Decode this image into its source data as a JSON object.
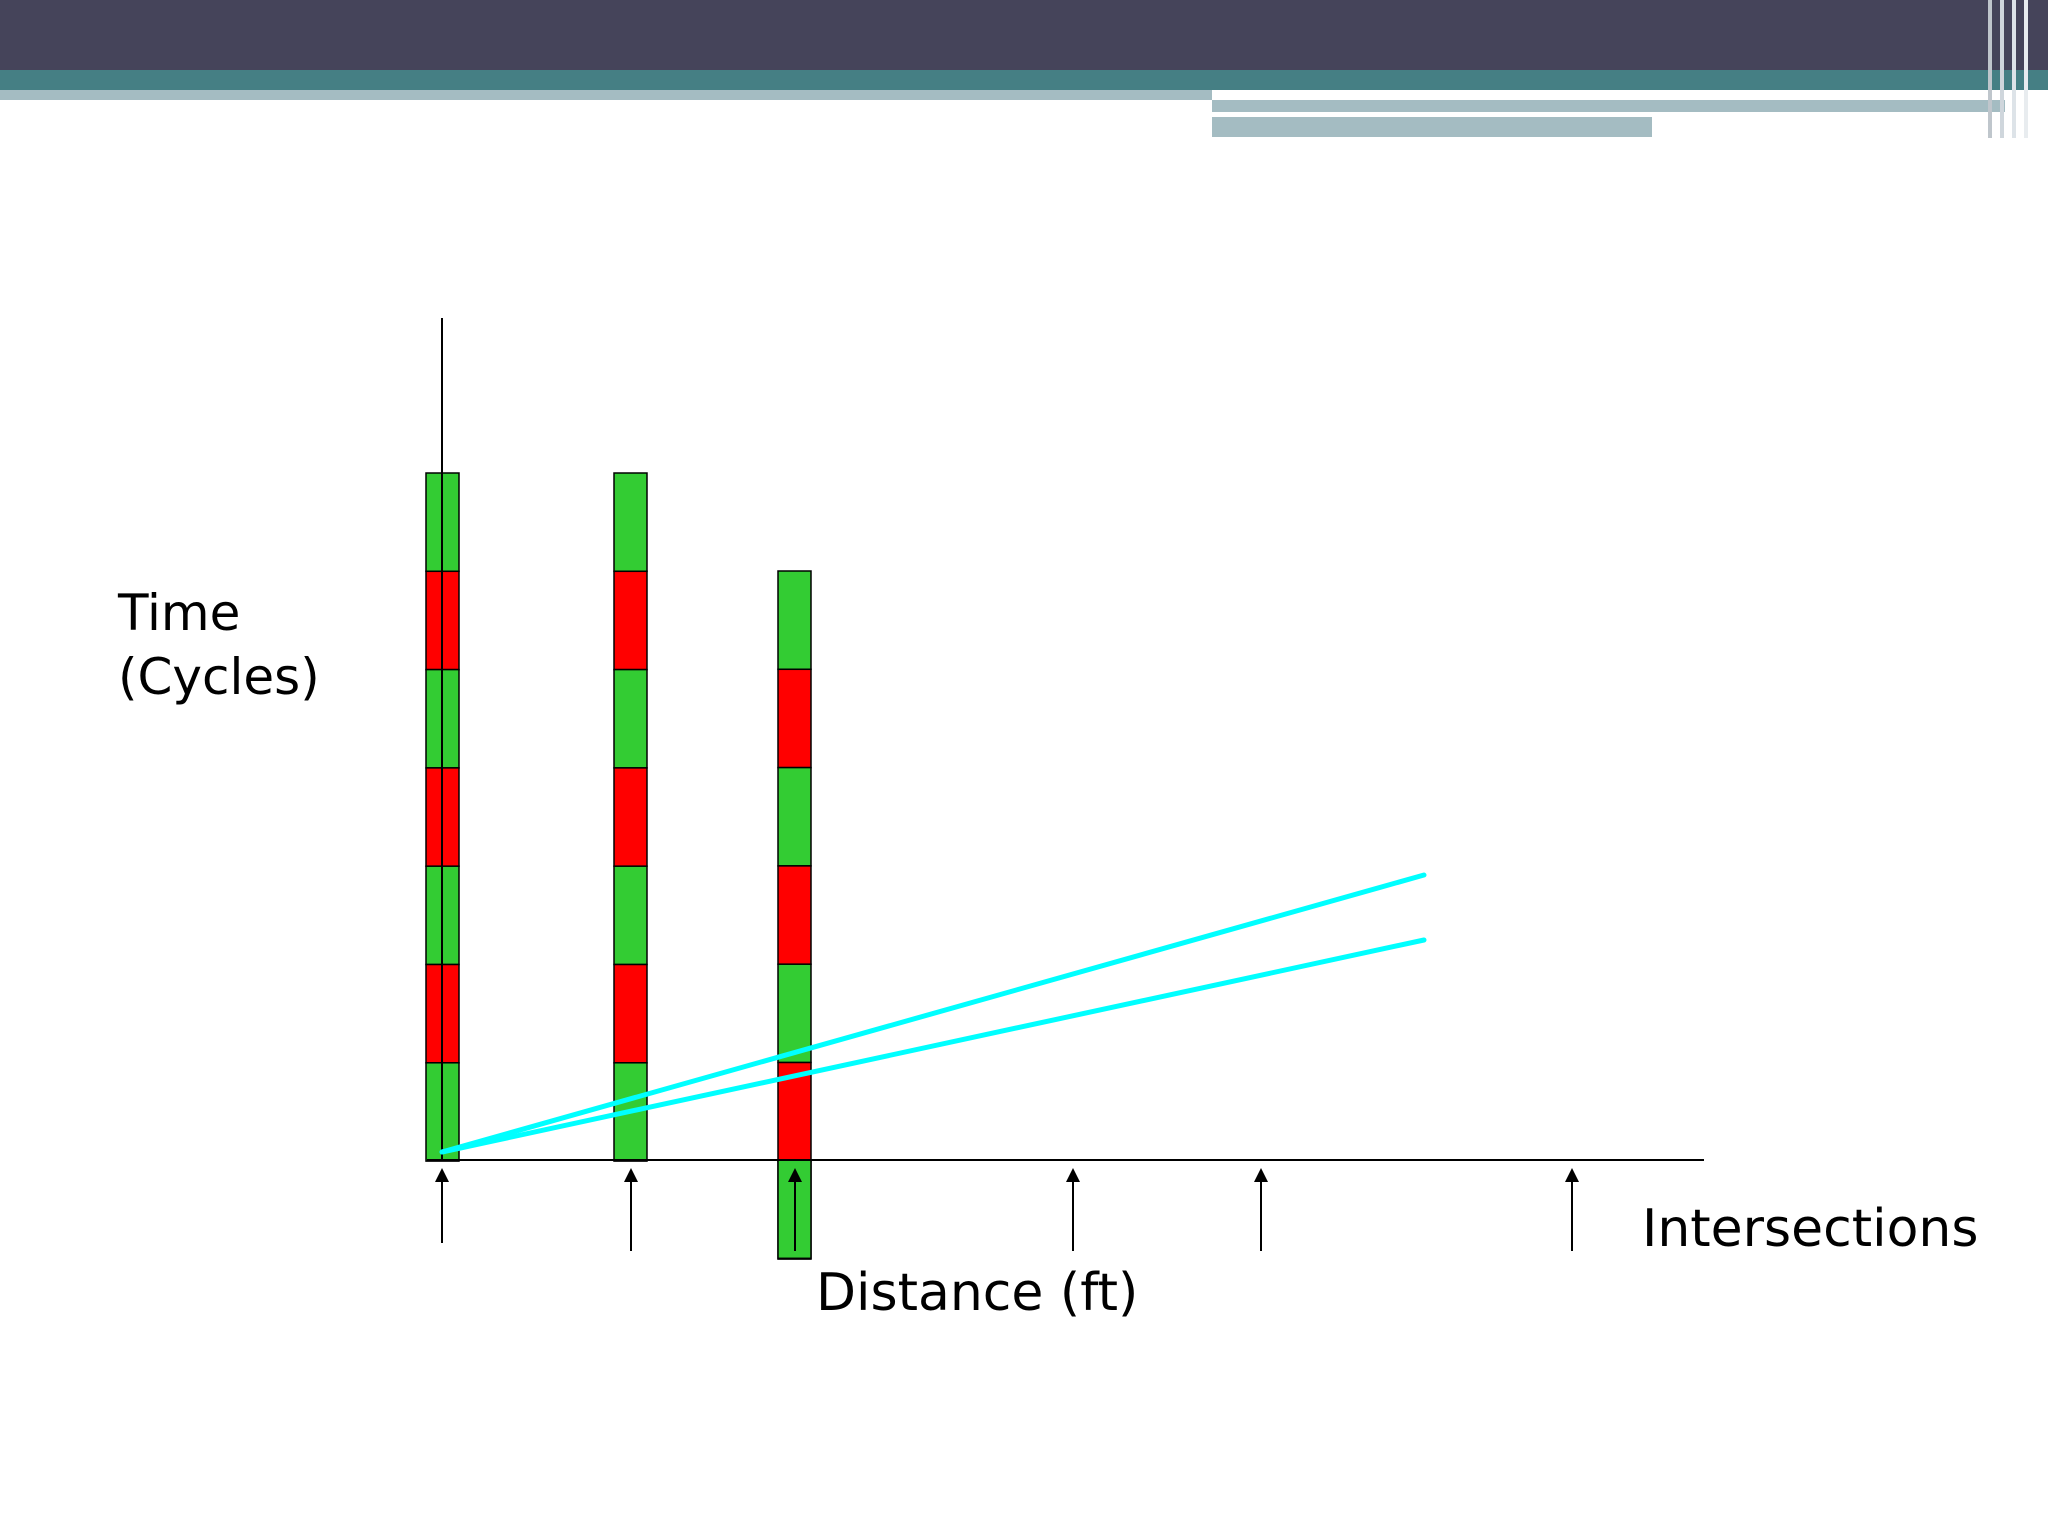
{
  "colors": {
    "header_dark": "#45445a",
    "header_teal": "#457f84",
    "header_light": "#a4bcc2",
    "signal_green": "#33cc33",
    "signal_red": "#ff0000",
    "trajectory": "#00ffff",
    "axis": "#000000"
  },
  "labels": {
    "y_axis": [
      "Time",
      "(Cycles)"
    ],
    "x_axis": "Distance (ft)",
    "intersections": "Intersections"
  },
  "signal_columns": [
    {
      "phases": [
        "green",
        "red",
        "green",
        "red",
        "green",
        "red",
        "green"
      ]
    },
    {
      "phases": [
        "green",
        "red",
        "green",
        "red",
        "green",
        "red",
        "green"
      ]
    },
    {
      "phases": [
        "green",
        "red",
        "green",
        "red",
        "green",
        "red",
        "green"
      ]
    }
  ],
  "intersection_count": 6,
  "trajectory_count": 2
}
